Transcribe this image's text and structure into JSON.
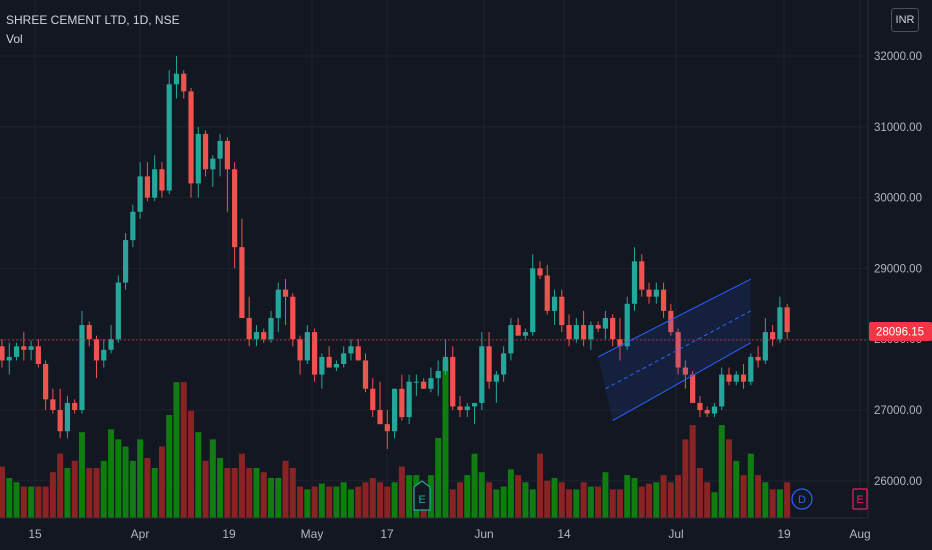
{
  "header": {
    "symbol_line": "SHREE CEMENT LTD, 1D, NSE",
    "volume_label": "Vol",
    "currency": "INR"
  },
  "price_axis": {
    "ticks": [
      "32000.00",
      "31000.00",
      "30000.00",
      "29000.00",
      "28000.00",
      "27000.00",
      "26000.00"
    ],
    "last_price": "28096.15",
    "last_price_color": "#f23645"
  },
  "time_axis": {
    "ticks": [
      "15",
      "Apr",
      "19",
      "May",
      "17",
      "Jun",
      "14",
      "Jul",
      "19",
      "Aug"
    ]
  },
  "event_markers": [
    {
      "letter": "E",
      "label": "earnings-marker"
    },
    {
      "letter": "D",
      "label": "dividend-marker"
    },
    {
      "letter": "E",
      "label": "earnings-marker-future"
    }
  ],
  "colors": {
    "up": "#26a69a",
    "down": "#ef5350",
    "vol_up": "#0f7d0f",
    "vol_down": "#8a2424",
    "channel": "#2962ff",
    "background": "#131722"
  },
  "chart_data": {
    "type": "candlestick",
    "title": "SHREE CEMENT LTD, 1D, NSE",
    "xlabel": "",
    "ylabel": "",
    "ylim": [
      25700,
      32500
    ],
    "grid": true,
    "dates": [
      "2021-03-01",
      "2021-03-02",
      "2021-03-03",
      "2021-03-04",
      "2021-03-05",
      "2021-03-08",
      "2021-03-09",
      "2021-03-10",
      "2021-03-12",
      "2021-03-15",
      "2021-03-16",
      "2021-03-17",
      "2021-03-18",
      "2021-03-19",
      "2021-03-22",
      "2021-03-23",
      "2021-03-24",
      "2021-03-25",
      "2021-03-26",
      "2021-03-30",
      "2021-03-31",
      "2021-04-01",
      "2021-04-05",
      "2021-04-06",
      "2021-04-07",
      "2021-04-08",
      "2021-04-09",
      "2021-04-12",
      "2021-04-13",
      "2021-04-15",
      "2021-04-16",
      "2021-04-19",
      "2021-04-20",
      "2021-04-22",
      "2021-04-23",
      "2021-04-26",
      "2021-04-27",
      "2021-04-28",
      "2021-04-29",
      "2021-04-30",
      "2021-05-03",
      "2021-05-04",
      "2021-05-05",
      "2021-05-06",
      "2021-05-07",
      "2021-05-10",
      "2021-05-11",
      "2021-05-12",
      "2021-05-14",
      "2021-05-17",
      "2021-05-18",
      "2021-05-19",
      "2021-05-20",
      "2021-05-21",
      "2021-05-24",
      "2021-05-25",
      "2021-05-26",
      "2021-05-27",
      "2021-05-28",
      "2021-05-31",
      "2021-06-01",
      "2021-06-02",
      "2021-06-03",
      "2021-06-04",
      "2021-06-07",
      "2021-06-08",
      "2021-06-09",
      "2021-06-10",
      "2021-06-11",
      "2021-06-14",
      "2021-06-15",
      "2021-06-16",
      "2021-06-17",
      "2021-06-18",
      "2021-06-21",
      "2021-06-22",
      "2021-06-23",
      "2021-06-24",
      "2021-06-25",
      "2021-06-28",
      "2021-06-29",
      "2021-06-30",
      "2021-07-01",
      "2021-07-02",
      "2021-07-05",
      "2021-07-06",
      "2021-07-07",
      "2021-07-08",
      "2021-07-09",
      "2021-07-12",
      "2021-07-13",
      "2021-07-14",
      "2021-07-15",
      "2021-07-16"
    ],
    "series": [
      {
        "name": "",
        "type": "ohlc",
        "values": [
          [
            27900,
            28000,
            27600,
            27700
          ],
          [
            27700,
            27950,
            27500,
            27750
          ],
          [
            27750,
            27950,
            27700,
            27900
          ],
          [
            27900,
            28100,
            27700,
            27850
          ],
          [
            27850,
            27980,
            27700,
            27900
          ],
          [
            27900,
            28000,
            27600,
            27650
          ],
          [
            27650,
            27700,
            27000,
            27150
          ],
          [
            27150,
            27300,
            26950,
            27000
          ],
          [
            27000,
            27300,
            26600,
            26700
          ],
          [
            26700,
            27200,
            26600,
            27100
          ],
          [
            27100,
            27150,
            26950,
            27000
          ],
          [
            27000,
            28400,
            26950,
            28200
          ],
          [
            28200,
            28250,
            27900,
            28000
          ],
          [
            28000,
            28050,
            27450,
            27700
          ],
          [
            27700,
            28000,
            27600,
            27850
          ],
          [
            27850,
            28200,
            27800,
            28000
          ],
          [
            28000,
            28900,
            27950,
            28800
          ],
          [
            28800,
            29500,
            28700,
            29400
          ],
          [
            29400,
            29900,
            29300,
            29800
          ],
          [
            29800,
            30500,
            29700,
            30300
          ],
          [
            30300,
            30500,
            29950,
            30000
          ],
          [
            30000,
            30600,
            29950,
            30400
          ],
          [
            30400,
            30500,
            30000,
            30100
          ],
          [
            30100,
            31800,
            30050,
            31600
          ],
          [
            31600,
            32000,
            31400,
            31750
          ],
          [
            31750,
            31800,
            31400,
            31500
          ],
          [
            31500,
            31550,
            30000,
            30200
          ],
          [
            30200,
            31000,
            30000,
            30900
          ],
          [
            30900,
            30950,
            30300,
            30400
          ],
          [
            30400,
            30600,
            30150,
            30550
          ],
          [
            30550,
            30900,
            30300,
            30800
          ],
          [
            30800,
            30850,
            29800,
            30400
          ],
          [
            30400,
            30500,
            29000,
            29300
          ],
          [
            29300,
            29700,
            28300,
            28300
          ],
          [
            28300,
            28600,
            27900,
            28000
          ],
          [
            28000,
            28200,
            27900,
            28100
          ],
          [
            28100,
            28150,
            27950,
            28000
          ],
          [
            28000,
            28400,
            27950,
            28300
          ],
          [
            28300,
            28800,
            28100,
            28700
          ],
          [
            28700,
            28850,
            28200,
            28600
          ],
          [
            28600,
            28650,
            27900,
            28000
          ],
          [
            28000,
            28050,
            27500,
            27700
          ],
          [
            27700,
            28200,
            27650,
            28100
          ],
          [
            28100,
            28150,
            27400,
            27500
          ],
          [
            27500,
            27800,
            27300,
            27750
          ],
          [
            27750,
            27900,
            27600,
            27600
          ],
          [
            27600,
            27700,
            27550,
            27650
          ],
          [
            27650,
            27900,
            27600,
            27800
          ],
          [
            27800,
            28000,
            27700,
            27900
          ],
          [
            27900,
            28000,
            27700,
            27700
          ],
          [
            27700,
            27800,
            27250,
            27300
          ],
          [
            27300,
            27450,
            26900,
            27000
          ],
          [
            27000,
            27400,
            26800,
            26800
          ],
          [
            26800,
            27000,
            26450,
            26700
          ],
          [
            26700,
            27300,
            26600,
            27300
          ],
          [
            27300,
            27500,
            26850,
            26900
          ],
          [
            26900,
            27500,
            26800,
            27400
          ],
          [
            27400,
            27500,
            27200,
            27400
          ],
          [
            27400,
            27450,
            27300,
            27300
          ],
          [
            27300,
            27600,
            27250,
            27450
          ],
          [
            27450,
            27700,
            27200,
            27550
          ],
          [
            27550,
            28000,
            27500,
            27750
          ],
          [
            27750,
            27900,
            27000,
            27050
          ],
          [
            27050,
            27200,
            26900,
            27000
          ],
          [
            27000,
            27100,
            26900,
            27050
          ],
          [
            27050,
            27100,
            26800,
            27100
          ],
          [
            27100,
            28100,
            27000,
            27900
          ],
          [
            27900,
            28100,
            27300,
            27400
          ],
          [
            27400,
            27550,
            27100,
            27500
          ],
          [
            27500,
            27900,
            27400,
            27800
          ],
          [
            27800,
            28300,
            27700,
            28200
          ],
          [
            28200,
            28300,
            28050,
            28050
          ],
          [
            28050,
            28150,
            28000,
            28100
          ],
          [
            28100,
            29200,
            28050,
            29000
          ],
          [
            29000,
            29100,
            28850,
            28900
          ],
          [
            28900,
            29050,
            28350,
            28400
          ],
          [
            28400,
            28700,
            28200,
            28600
          ],
          [
            28600,
            28700,
            28100,
            28200
          ],
          [
            28200,
            28350,
            27900,
            28000
          ],
          [
            28000,
            28300,
            27950,
            28200
          ],
          [
            28200,
            28400,
            27900,
            28000
          ],
          [
            28000,
            28250,
            27850,
            28200
          ],
          [
            28200,
            28250,
            28100,
            28150
          ],
          [
            28150,
            28400,
            28000,
            28300
          ],
          [
            28300,
            28350,
            27900,
            28000
          ],
          [
            28000,
            28300,
            27700,
            27900
          ],
          [
            27900,
            28600,
            27850,
            28500
          ],
          [
            28500,
            29300,
            28400,
            29100
          ],
          [
            29100,
            29200,
            28600,
            28700
          ],
          [
            28700,
            28800,
            28500,
            28600
          ],
          [
            28600,
            28800,
            28500,
            28700
          ],
          [
            28700,
            28800,
            28300,
            28400
          ],
          [
            28400,
            28500,
            28050,
            28100
          ],
          [
            28100,
            28150,
            27500,
            27600
          ]
        ]
      },
      {
        "name": "Vol",
        "type": "volume",
        "values": [
          36,
          28,
          25,
          22,
          22,
          22,
          22,
          32,
          45,
          35,
          40,
          60,
          35,
          35,
          40,
          62,
          55,
          50,
          40,
          55,
          42,
          35,
          50,
          72,
          95,
          95,
          75,
          60,
          40,
          55,
          42,
          35,
          35,
          45,
          35,
          35,
          32,
          28,
          28,
          40,
          35,
          22,
          20,
          22,
          24,
          22,
          22,
          25,
          20,
          22,
          25,
          28,
          25,
          22,
          25,
          36,
          30,
          30,
          20,
          30,
          56,
          110,
          20,
          25,
          30,
          45,
          32,
          25,
          20,
          22,
          34,
          30,
          25,
          20,
          45,
          26,
          28,
          25,
          20,
          20,
          25,
          22,
          22,
          32,
          20,
          20,
          30,
          28,
          22,
          24,
          25,
          30,
          25,
          30
        ]
      }
    ],
    "extra_dates": [
      "2021-07-19",
      "2021-07-20",
      "2021-07-22",
      "2021-07-23",
      "2021-07-26",
      "2021-07-27",
      "2021-07-28",
      "2021-07-29",
      "2021-07-30",
      "2021-08-02",
      "2021-08-03",
      "2021-08-04",
      "2021-08-05",
      "2021-08-06",
      "2021-08-09"
    ],
    "extra_ohlc": [
      [
        27600,
        27700,
        27300,
        27500
      ],
      [
        27500,
        27550,
        27100,
        27100
      ],
      [
        27100,
        27200,
        26900,
        27000
      ],
      [
        27000,
        27050,
        26900,
        26950
      ],
      [
        26950,
        27100,
        26900,
        27050
      ],
      [
        27050,
        27600,
        27000,
        27500
      ],
      [
        27500,
        27600,
        27350,
        27400
      ],
      [
        27400,
        27550,
        27350,
        27500
      ],
      [
        27500,
        27650,
        27300,
        27400
      ],
      [
        27400,
        27800,
        27350,
        27750
      ],
      [
        27750,
        27900,
        27600,
        27700
      ],
      [
        27700,
        28300,
        27650,
        28100
      ],
      [
        28100,
        28200,
        27900,
        28000
      ],
      [
        28000,
        28600,
        27950,
        28450
      ],
      [
        28450,
        28500,
        28000,
        28100
      ]
    ],
    "extra_volume": [
      55,
      65,
      35,
      25,
      18,
      65,
      55,
      40,
      30,
      45,
      30,
      25,
      20,
      20,
      25
    ],
    "channel": {
      "upper": [
        [
          "2021-07-01",
          27750
        ],
        [
          "2021-08-02",
          28850
        ]
      ],
      "lower": [
        [
          "2021-07-05",
          26850
        ],
        [
          "2021-08-02",
          27950
        ]
      ]
    }
  }
}
